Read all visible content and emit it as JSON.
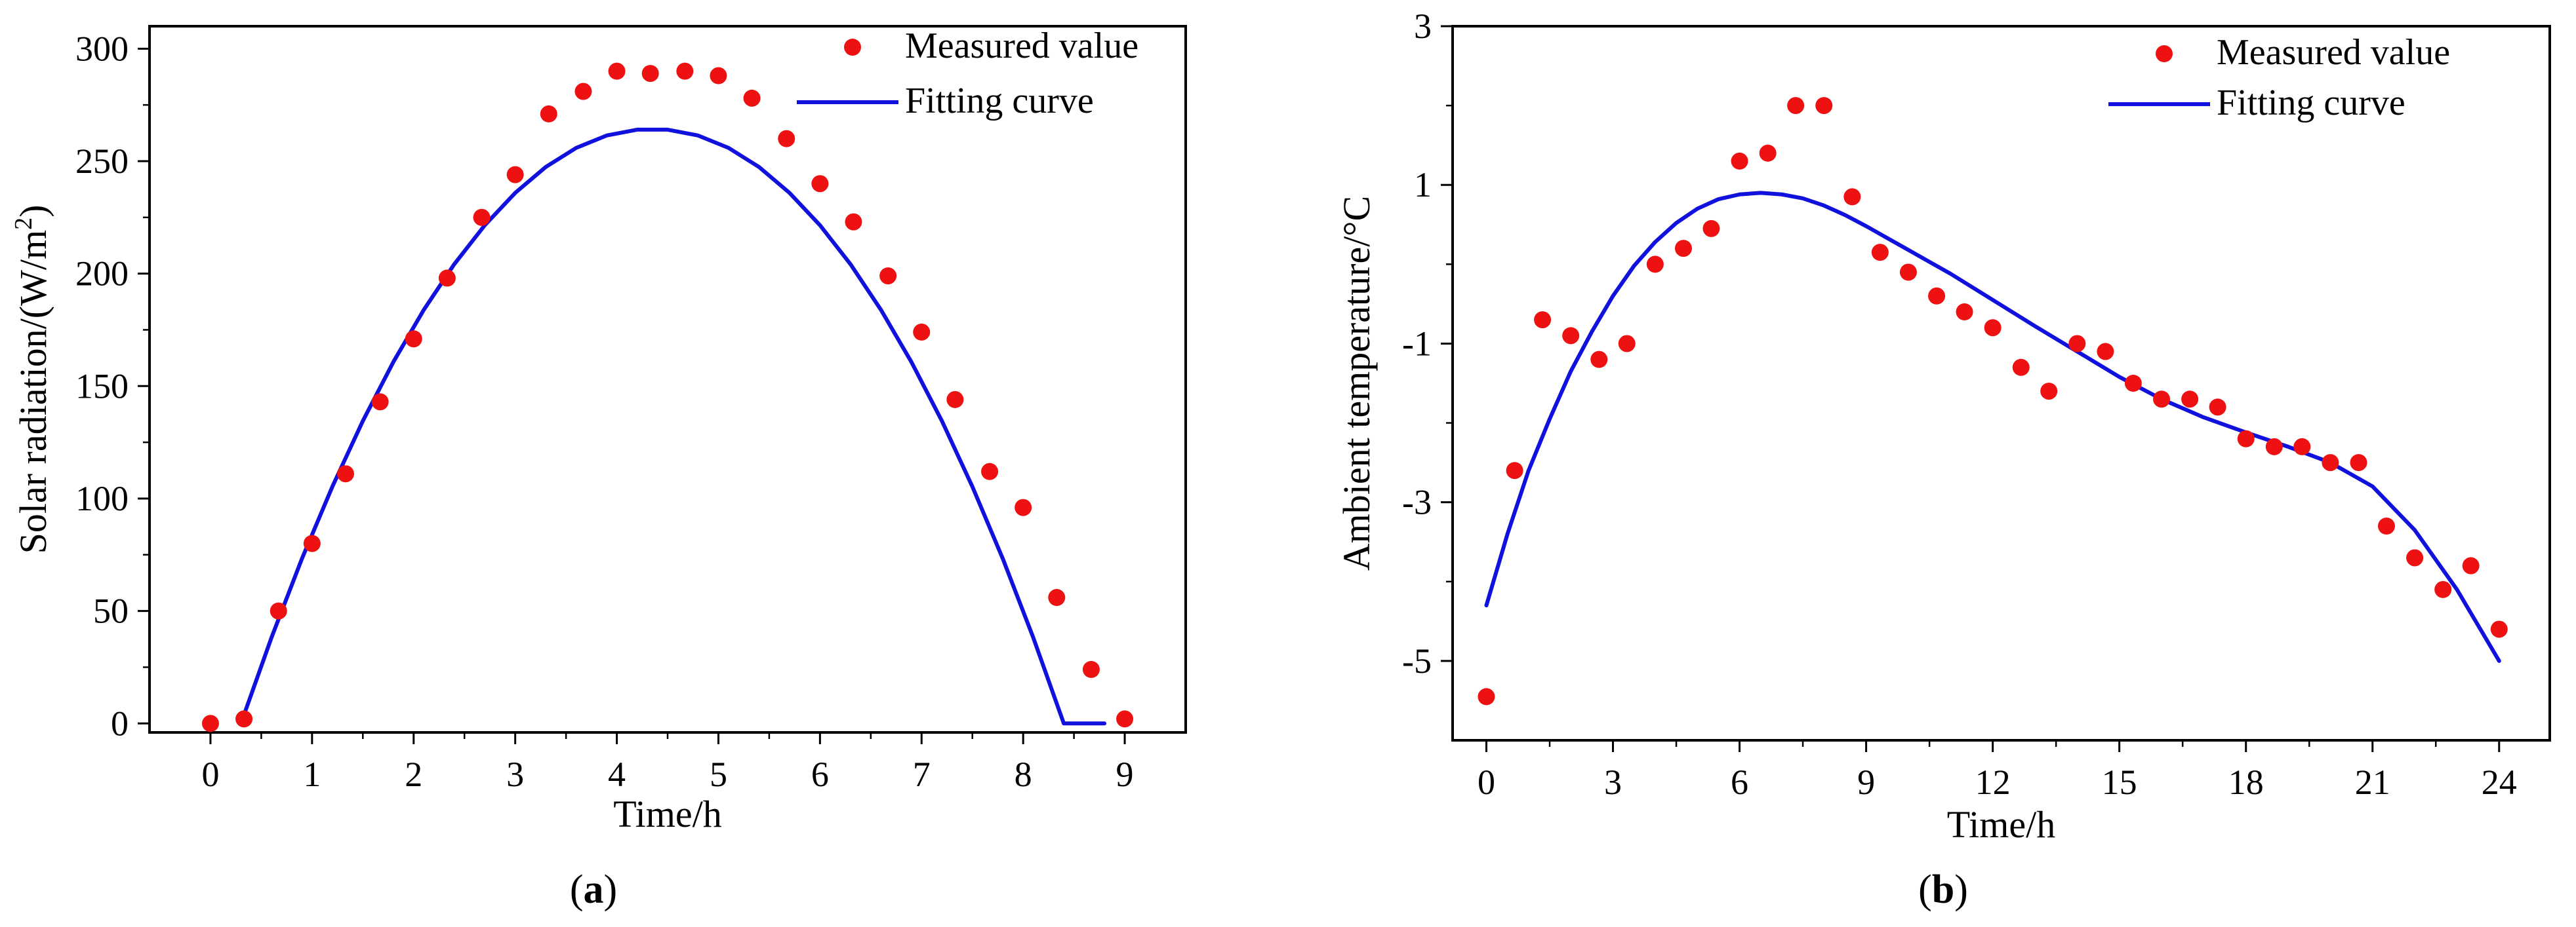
{
  "colors": {
    "measured": "#ee1111",
    "fit": "#1111dd",
    "axis": "#000000"
  },
  "chart_data": [
    {
      "type": "scatter",
      "panel_label": "a",
      "xlabel": "Time/h",
      "ylabel_main": "Solar radiation/(W/m",
      "ylabel_sup": "2",
      "ylabel_end": ")",
      "xlim": [
        -0.6,
        9.6
      ],
      "ylim": [
        -4,
        310
      ],
      "xticks": [
        0,
        1,
        2,
        3,
        4,
        5,
        6,
        7,
        8,
        9
      ],
      "yticks": [
        0,
        50,
        100,
        150,
        200,
        250,
        300
      ],
      "legend": [
        "Measured value",
        "Fitting curve"
      ],
      "legend_position": "top-right",
      "series": [
        {
          "name": "Measured value",
          "kind": "points",
          "x": [
            0,
            0.33,
            0.67,
            1,
            1.33,
            1.67,
            2,
            2.33,
            2.67,
            3,
            3.33,
            3.67,
            4,
            4.33,
            4.67,
            5,
            5.33,
            5.67,
            6,
            6.33,
            6.67,
            7,
            7.33,
            7.67,
            8,
            8.33,
            8.67,
            9
          ],
          "y": [
            0,
            2,
            50,
            80,
            111,
            143,
            171,
            198,
            225,
            244,
            271,
            281,
            290,
            289,
            290,
            288,
            278,
            260,
            240,
            223,
            199,
            174,
            144,
            112,
            96,
            56,
            24,
            2
          ]
        },
        {
          "name": "Fitting curve",
          "kind": "line",
          "x": [
            0.3,
            0.6,
            0.9,
            1.2,
            1.5,
            1.8,
            2.1,
            2.4,
            2.7,
            3.0,
            3.3,
            3.6,
            3.9,
            4.2,
            4.5,
            4.8,
            5.1,
            5.4,
            5.7,
            6.0,
            6.3,
            6.6,
            6.9,
            7.2,
            7.5,
            7.8,
            8.1,
            8.4,
            8.7,
            8.8
          ],
          "y": [
            0,
            38.1,
            73.2,
            105.3,
            134.5,
            160.7,
            183.9,
            204.2,
            221.5,
            235.9,
            247.4,
            255.9,
            261.4,
            264.0,
            264.0,
            261.4,
            255.9,
            247.4,
            235.9,
            221.5,
            204.2,
            183.9,
            160.7,
            134.5,
            105.3,
            73.2,
            38.1,
            0,
            0,
            0
          ]
        }
      ]
    },
    {
      "type": "scatter",
      "panel_label": "b",
      "xlabel": "Time/h",
      "ylabel_main": "Ambient temperature/°C",
      "ylabel_sup": "",
      "ylabel_end": "",
      "xlim": [
        -0.8,
        25.2
      ],
      "ylim": [
        -6.0,
        3.0
      ],
      "xticks": [
        0,
        3,
        6,
        9,
        12,
        15,
        18,
        21,
        24
      ],
      "yticks": [
        -5,
        -3,
        -1,
        1,
        3
      ],
      "legend": [
        "Measured value",
        "Fitting curve"
      ],
      "legend_position": "top-right",
      "series": [
        {
          "name": "Measured value",
          "kind": "points",
          "x": [
            0,
            0.67,
            1.33,
            2,
            2.67,
            3.33,
            4,
            4.67,
            5.33,
            6,
            6.67,
            7.33,
            8,
            8.67,
            9.33,
            10,
            10.67,
            11.33,
            12,
            12.67,
            13.33,
            14,
            14.67,
            15.33,
            16,
            16.67,
            17.33,
            18,
            18.67,
            19.33,
            20,
            20.67,
            21.33,
            22,
            22.67,
            23.33,
            24
          ],
          "y": [
            -5.45,
            -2.6,
            -0.7,
            -0.9,
            -1.2,
            -1.0,
            0.0,
            0.2,
            0.45,
            1.3,
            1.4,
            2.0,
            2.0,
            0.85,
            0.15,
            -0.1,
            -0.4,
            -0.6,
            -0.8,
            -1.3,
            -1.6,
            -1.0,
            -1.1,
            -1.5,
            -1.7,
            -1.7,
            -1.8,
            -2.2,
            -2.3,
            -2.3,
            -2.5,
            -2.5,
            -3.3,
            -3.7,
            -4.1,
            -3.8,
            -4.6
          ]
        },
        {
          "name": "Fitting curve",
          "kind": "line",
          "x": [
            0,
            0.5,
            1,
            1.5,
            2,
            2.5,
            3,
            3.5,
            4,
            4.5,
            5,
            5.5,
            6,
            6.5,
            7,
            7.5,
            8,
            8.5,
            9,
            9.5,
            10,
            11,
            12,
            13,
            14,
            15,
            16,
            17,
            18,
            19,
            20,
            21,
            22,
            23,
            24
          ],
          "y": [
            -4.3,
            -3.4,
            -2.6,
            -1.95,
            -1.35,
            -0.85,
            -0.4,
            -0.02,
            0.28,
            0.52,
            0.7,
            0.82,
            0.88,
            0.9,
            0.88,
            0.83,
            0.74,
            0.62,
            0.48,
            0.33,
            0.18,
            -0.12,
            -0.45,
            -0.78,
            -1.1,
            -1.42,
            -1.7,
            -1.93,
            -2.12,
            -2.3,
            -2.5,
            -2.8,
            -3.35,
            -4.1,
            -5.0
          ]
        }
      ]
    }
  ]
}
